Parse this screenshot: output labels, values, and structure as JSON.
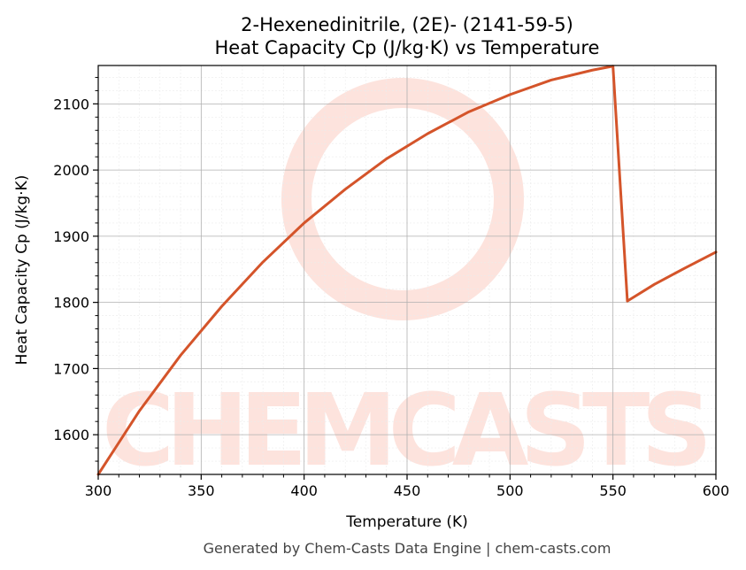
{
  "chart_data": {
    "type": "line",
    "title_line1": "2-Hexenedinitrile, (2E)- (2141-59-5)",
    "title_line2": "Heat Capacity Cp (J/kg·K) vs Temperature",
    "xlabel": "Temperature (K)",
    "ylabel": "Heat Capacity Cp (J/kg·K)",
    "xlim": [
      300,
      600
    ],
    "ylim": [
      1540,
      2158
    ],
    "xticks": [
      300,
      350,
      400,
      450,
      500,
      550,
      600
    ],
    "yticks": [
      1600,
      1700,
      1800,
      1900,
      2000,
      2100
    ],
    "grid": true,
    "line_color": "#d4542a",
    "series": [
      {
        "x": [
          300,
          320,
          340,
          360,
          380,
          400,
          420,
          440,
          460,
          480,
          500,
          520,
          540,
          550,
          557,
          570,
          585,
          600
        ],
        "y": [
          1540,
          1636,
          1720,
          1794,
          1861,
          1920,
          1971,
          2017,
          2055,
          2088,
          2114,
          2136,
          2151,
          2157,
          1802,
          1827,
          1852,
          1876
        ]
      }
    ]
  },
  "watermark": "CHEMCASTS",
  "footer": "Generated by Chem-Casts Data Engine | chem-casts.com"
}
